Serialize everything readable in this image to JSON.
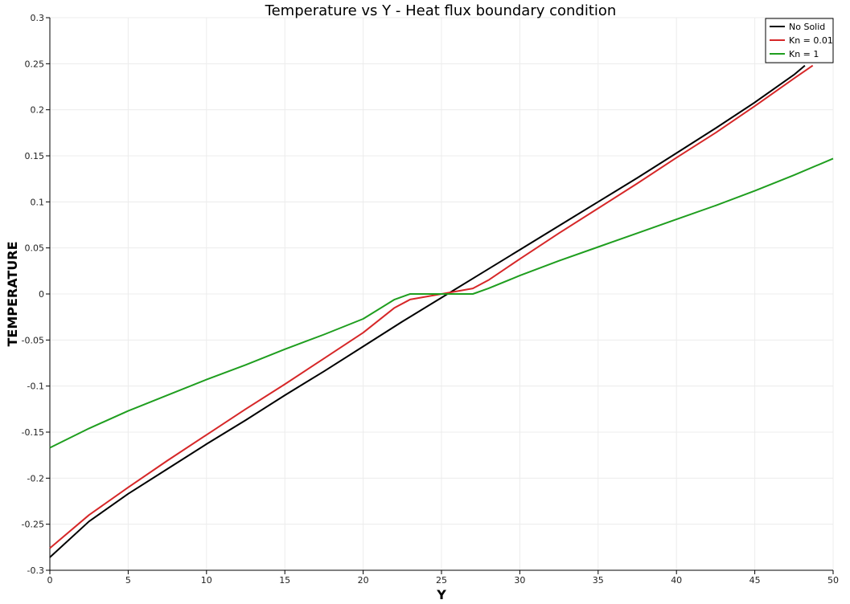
{
  "chart_data": {
    "type": "line",
    "title": "Temperature vs Y - Heat flux boundary condition",
    "xlabel": "Y",
    "ylabel": "TEMPERATURE",
    "xlim": [
      0,
      50
    ],
    "ylim": [
      -0.3,
      0.3
    ],
    "x_ticks": [
      0,
      5,
      10,
      15,
      20,
      25,
      30,
      35,
      40,
      45,
      50
    ],
    "x_tick_labels": [
      "0",
      "5",
      "10",
      "15",
      "20",
      "25",
      "30",
      "35",
      "40",
      "45",
      "50"
    ],
    "y_ticks": [
      -0.3,
      -0.25,
      -0.2,
      -0.15,
      -0.1,
      -0.05,
      0,
      0.05,
      0.1,
      0.15,
      0.2,
      0.25,
      0.3
    ],
    "y_tick_labels": [
      "-0.3",
      "-0.25",
      "-0.2",
      "-0.15",
      "-0.1",
      "-0.05",
      "0",
      "0.05",
      "0.1",
      "0.15",
      "0.2",
      "0.25",
      "0.3"
    ],
    "grid": true,
    "legend_position": "top-right",
    "series": [
      {
        "name": "No Solid",
        "color": "#000000",
        "x": [
          0,
          2.5,
          5,
          7.5,
          10,
          12.5,
          15,
          17.5,
          20,
          22.5,
          25,
          27.5,
          30,
          32.5,
          35,
          37.5,
          40,
          42.5,
          45,
          47.5,
          48.2
        ],
        "y": [
          -0.286,
          -0.247,
          -0.217,
          -0.19,
          -0.163,
          -0.137,
          -0.11,
          -0.084,
          -0.057,
          -0.03,
          -0.004,
          0.022,
          0.048,
          0.074,
          0.1,
          0.126,
          0.153,
          0.18,
          0.208,
          0.238,
          0.248
        ]
      },
      {
        "name": "Kn = 0.01",
        "color": "#d62728",
        "x": [
          0,
          2.5,
          5,
          7.5,
          10,
          12.5,
          15,
          17.5,
          20,
          22,
          23,
          25,
          27,
          28,
          30,
          32.5,
          35,
          37.5,
          40,
          42.5,
          45,
          47.5,
          48.7
        ],
        "y": [
          -0.276,
          -0.24,
          -0.21,
          -0.181,
          -0.153,
          -0.125,
          -0.098,
          -0.07,
          -0.042,
          -0.015,
          -0.006,
          0.0,
          0.006,
          0.015,
          0.038,
          0.066,
          0.093,
          0.12,
          0.148,
          0.175,
          0.204,
          0.234,
          0.248
        ]
      },
      {
        "name": "Kn = 1",
        "color": "#1f9e1f",
        "x": [
          0,
          2.5,
          5,
          7.5,
          10,
          12.5,
          15,
          17.5,
          20,
          22,
          23,
          25,
          27,
          28,
          30,
          32.5,
          35,
          37.5,
          40,
          42.5,
          45,
          47.5,
          50
        ],
        "y": [
          -0.167,
          -0.146,
          -0.127,
          -0.11,
          -0.093,
          -0.077,
          -0.06,
          -0.044,
          -0.027,
          -0.006,
          0.0,
          0.0,
          0.0,
          0.006,
          0.02,
          0.036,
          0.051,
          0.066,
          0.081,
          0.096,
          0.112,
          0.129,
          0.147
        ]
      }
    ]
  }
}
